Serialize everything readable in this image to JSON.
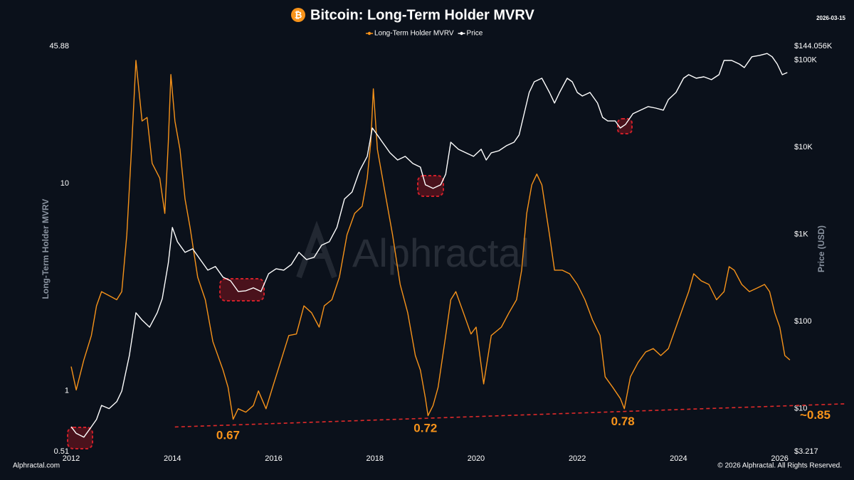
{
  "header": {
    "date": "2026-03-15",
    "footer_left": "Alphractal.com",
    "footer_right": "© 2026 Alphractal. All Rights Reserved.",
    "watermark": "Alphractal"
  },
  "chart_data": {
    "type": "line",
    "title": "Bitcoin: Long-Term Holder MVRV",
    "x_label": null,
    "y_label": "Long-Term Holder MVRV",
    "y2_label": "Price (USD)",
    "legend": "top",
    "grid": false,
    "log_y": true,
    "log_y2": true,
    "xlim": [
      2012,
      2026.3
    ],
    "xticks": [
      2012,
      2014,
      2016,
      2018,
      2020,
      2022,
      2024,
      2026
    ],
    "ylim": [
      0.51,
      45.88
    ],
    "yticks": [
      0.51,
      1,
      10,
      45.88
    ],
    "y2lim": [
      3.217,
      144056
    ],
    "y2ticks": [
      {
        "value": 3.217,
        "label": "$3.217"
      },
      {
        "value": 10,
        "label": "$10"
      },
      {
        "value": 100,
        "label": "$100"
      },
      {
        "value": 1000,
        "label": "$1K"
      },
      {
        "value": 10000,
        "label": "$10K"
      },
      {
        "value": 100000,
        "label": "$100K"
      },
      {
        "value": 144056,
        "label": "$144.056K"
      }
    ],
    "series": [
      {
        "name": "Long-Term Holder MVRV",
        "color": "#f7931a",
        "x": [
          2012.0,
          2012.1,
          2012.25,
          2012.4,
          2012.5,
          2012.6,
          2012.75,
          2012.9,
          2013.0,
          2013.1,
          2013.2,
          2013.28,
          2013.4,
          2013.5,
          2013.6,
          2013.75,
          2013.85,
          2013.92,
          2013.97,
          2014.05,
          2014.15,
          2014.25,
          2014.35,
          2014.5,
          2014.65,
          2014.8,
          2015.0,
          2015.1,
          2015.2,
          2015.3,
          2015.45,
          2015.6,
          2015.7,
          2015.85,
          2016.0,
          2016.15,
          2016.3,
          2016.45,
          2016.6,
          2016.75,
          2016.9,
          2017.0,
          2017.15,
          2017.3,
          2017.45,
          2017.6,
          2017.75,
          2017.85,
          2017.92,
          2017.97,
          2018.05,
          2018.2,
          2018.35,
          2018.5,
          2018.65,
          2018.8,
          2018.9,
          2019.0,
          2019.05,
          2019.15,
          2019.25,
          2019.4,
          2019.5,
          2019.6,
          2019.75,
          2019.9,
          2020.0,
          2020.15,
          2020.3,
          2020.5,
          2020.65,
          2020.8,
          2020.9,
          2021.0,
          2021.1,
          2021.2,
          2021.3,
          2021.45,
          2021.55,
          2021.7,
          2021.85,
          2022.0,
          2022.15,
          2022.3,
          2022.45,
          2022.55,
          2022.7,
          2022.85,
          2022.93,
          2023.05,
          2023.2,
          2023.35,
          2023.5,
          2023.65,
          2023.8,
          2023.95,
          2024.1,
          2024.2,
          2024.3,
          2024.45,
          2024.6,
          2024.75,
          2024.9,
          2025.0,
          2025.1,
          2025.25,
          2025.4,
          2025.55,
          2025.7,
          2025.8,
          2025.9,
          2026.0,
          2026.1,
          2026.2
        ],
        "values": [
          1.31,
          1.01,
          1.41,
          1.85,
          2.57,
          3.01,
          2.88,
          2.75,
          3.01,
          5.66,
          15.8,
          39.2,
          20.0,
          20.8,
          12.5,
          10.6,
          7.17,
          15.8,
          33.5,
          20.0,
          14.6,
          8.41,
          6.13,
          3.53,
          2.75,
          1.73,
          1.26,
          1.04,
          0.73,
          0.82,
          0.79,
          0.85,
          1.0,
          0.82,
          1.08,
          1.41,
          1.85,
          1.88,
          2.57,
          2.38,
          2.03,
          2.57,
          2.75,
          3.53,
          5.66,
          7.17,
          7.76,
          10.6,
          15.8,
          28.6,
          14.6,
          9.09,
          5.66,
          3.26,
          2.38,
          1.48,
          1.26,
          0.92,
          0.76,
          0.85,
          1.04,
          1.85,
          2.75,
          3.01,
          2.38,
          1.88,
          2.03,
          1.08,
          1.85,
          2.03,
          2.38,
          2.75,
          3.82,
          7.17,
          9.84,
          11.1,
          9.84,
          5.66,
          3.82,
          3.82,
          3.67,
          3.26,
          2.75,
          2.2,
          1.85,
          1.17,
          1.04,
          0.92,
          0.82,
          1.17,
          1.37,
          1.54,
          1.6,
          1.48,
          1.6,
          2.03,
          2.57,
          3.01,
          3.67,
          3.39,
          3.26,
          2.75,
          3.01,
          3.97,
          3.82,
          3.26,
          3.01,
          3.13,
          3.26,
          3.01,
          2.38,
          2.03,
          1.48,
          1.41
        ]
      },
      {
        "name": "Price",
        "color": "#ffffff",
        "axis": "y2",
        "x": [
          2012.0,
          2012.1,
          2012.25,
          2012.4,
          2012.5,
          2012.6,
          2012.75,
          2012.9,
          2013.0,
          2013.15,
          2013.28,
          2013.4,
          2013.55,
          2013.7,
          2013.8,
          2013.92,
          2014.0,
          2014.1,
          2014.25,
          2014.4,
          2014.55,
          2014.7,
          2014.85,
          2015.0,
          2015.15,
          2015.3,
          2015.45,
          2015.6,
          2015.75,
          2015.9,
          2016.05,
          2016.2,
          2016.35,
          2016.5,
          2016.65,
          2016.8,
          2016.95,
          2017.1,
          2017.25,
          2017.4,
          2017.55,
          2017.7,
          2017.85,
          2017.95,
          2018.05,
          2018.15,
          2018.3,
          2018.45,
          2018.6,
          2018.75,
          2018.9,
          2019.0,
          2019.15,
          2019.3,
          2019.4,
          2019.5,
          2019.65,
          2019.8,
          2019.95,
          2020.1,
          2020.2,
          2020.3,
          2020.45,
          2020.6,
          2020.75,
          2020.85,
          2020.95,
          2021.05,
          2021.15,
          2021.3,
          2021.45,
          2021.55,
          2021.65,
          2021.8,
          2021.9,
          2022.0,
          2022.1,
          2022.25,
          2022.4,
          2022.5,
          2022.6,
          2022.75,
          2022.85,
          2022.95,
          2023.1,
          2023.25,
          2023.4,
          2023.55,
          2023.7,
          2023.8,
          2023.95,
          2024.1,
          2024.2,
          2024.35,
          2024.5,
          2024.65,
          2024.8,
          2024.9,
          2025.05,
          2025.2,
          2025.3,
          2025.45,
          2025.6,
          2025.75,
          2025.85,
          2025.95,
          2026.05,
          2026.15
        ],
        "values": [
          6.2,
          5.2,
          4.7,
          6.2,
          7.5,
          10.9,
          10,
          12.0,
          15.9,
          40.8,
          126,
          104,
          86,
          126,
          183,
          468,
          1200,
          823,
          621,
          682,
          514,
          388,
          427,
          322,
          293,
          221,
          225,
          243,
          221,
          353,
          403,
          388,
          451,
          621,
          514,
          545,
          750,
          823,
          1200,
          2540,
          3060,
          5390,
          7840,
          16600,
          13800,
          11400,
          8610,
          7130,
          7840,
          6500,
          5910,
          3700,
          3370,
          3700,
          4900,
          11400,
          9460,
          8610,
          7840,
          9460,
          7130,
          8610,
          9100,
          10400,
          11400,
          13800,
          24200,
          42500,
          56300,
          61800,
          42500,
          32100,
          42500,
          61800,
          56300,
          42500,
          38700,
          42500,
          32100,
          22000,
          20000,
          20000,
          16600,
          18200,
          24200,
          26600,
          29200,
          28100,
          26600,
          35200,
          42500,
          61800,
          67900,
          61800,
          64200,
          59600,
          67900,
          98900,
          98900,
          90000,
          82000,
          109000,
          113000,
          119000,
          109000,
          90000,
          67900,
          71900
        ]
      }
    ],
    "annotations": [
      {
        "x": 2015.1,
        "value": 0.67
      },
      {
        "x": 2019.0,
        "value": 0.72
      },
      {
        "x": 2022.9,
        "value": 0.78
      },
      {
        "x": 2026.7,
        "value": 0.85,
        "label": "~0.85"
      }
    ],
    "trend_line": {
      "x": [
        2014.05,
        2026.3
      ],
      "values": [
        0.67,
        0.85
      ]
    }
  }
}
